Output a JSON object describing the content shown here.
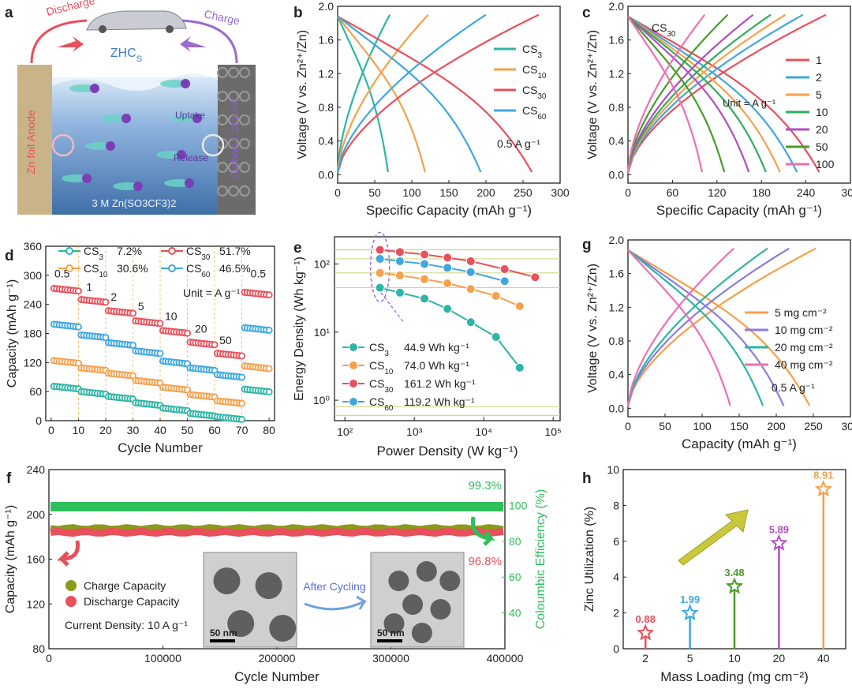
{
  "panels": {
    "a": {
      "letter": "a",
      "discharge_label": "Discharge",
      "charge_label": "Charge",
      "device_label": "ZHC",
      "device_sub": "S",
      "anode_label": "Zn foil Anode",
      "cathode_label": "Carbon Cathode",
      "uptake_label": "Uptake",
      "release_label": "Release",
      "electrolyte_label": "3 M Zn(SO3CF3)2",
      "colors": {
        "discharge": "#e8505b",
        "charge": "#9b6ad0",
        "anode": "#c9b48a",
        "cathode": "#6b6b6b",
        "water": "#5a8fc8"
      }
    },
    "b": {
      "letter": "b",
      "note": "0.5 A g⁻¹",
      "xlabel": "Specific Capacity (mAh g⁻¹)",
      "ylabel": "Voltage (V vs. Zn²⁺/Zn)"
    },
    "c": {
      "letter": "c",
      "tag": "CS30",
      "note": "Unit = A g⁻¹",
      "xlabel": "Specific Capacity (mAh g⁻¹)",
      "ylabel": "Voltage (V vs. Zn²⁺/Zn)"
    },
    "d": {
      "letter": "d",
      "note": "Unit = A g⁻¹",
      "xlabel": "Cycle Number",
      "ylabel": "Capacity (mAh g⁻¹)"
    },
    "e": {
      "letter": "e",
      "xlabel": "Power Density (W kg⁻¹)",
      "ylabel": "Energy Density (Wh kg⁻¹)"
    },
    "f": {
      "letter": "f",
      "xlabel": "Cycle Number",
      "ylabel": "Capacity (mAh g⁻¹)",
      "ylabel2": "Coloumbic Efficiency (%)",
      "current": "Current Density: 10 A g⁻¹",
      "after": "After Cycling",
      "scale1": "50 nm",
      "scale2": "50 nm"
    },
    "g": {
      "letter": "g",
      "note": "0.5 A g⁻¹",
      "xlabel": "Capacity (mAh g⁻¹)",
      "ylabel": "Voltage (V vs. Zn²⁺/Zn)"
    },
    "h": {
      "letter": "h",
      "xlabel": "Mass Loading (mg cm⁻²)",
      "ylabel": "Zinc Utilization (%)"
    }
  },
  "chart_data": [
    {
      "panel": "b",
      "type": "line",
      "xlim": [
        0,
        300
      ],
      "ylim": [
        -0.1,
        2.0
      ],
      "xticks": [
        "0",
        "50",
        "100",
        "150",
        "200",
        "250",
        "300"
      ],
      "yticks": [
        "0.0",
        "0.4",
        "0.8",
        "1.2",
        "1.6",
        "2.0"
      ],
      "series": [
        {
          "name": "CS3",
          "sub": "3",
          "color": "#2db5a5",
          "capacity": 68
        },
        {
          "name": "CS10",
          "sub": "10",
          "color": "#f5a04a",
          "capacity": 118
        },
        {
          "name": "CS30",
          "sub": "30",
          "color": "#e8505b",
          "capacity": 262
        },
        {
          "name": "CS60",
          "sub": "60",
          "color": "#3fa7de",
          "capacity": 193
        }
      ]
    },
    {
      "panel": "c",
      "type": "line",
      "xlim": [
        0,
        300
      ],
      "ylim": [
        -0.1,
        2.0
      ],
      "xticks": [
        "0",
        "60",
        "120",
        "180",
        "240",
        "300"
      ],
      "yticks": [
        "0.0",
        "0.4",
        "0.8",
        "1.2",
        "1.6",
        "2.0"
      ],
      "series": [
        {
          "name": "1",
          "color": "#e8505b",
          "capacity": 258
        },
        {
          "name": "2",
          "color": "#3fa7de",
          "capacity": 228
        },
        {
          "name": "5",
          "color": "#f5a04a",
          "capacity": 205
        },
        {
          "name": "10",
          "color": "#2fae5c",
          "capacity": 186
        },
        {
          "name": "20",
          "color": "#b04fc0",
          "capacity": 163
        },
        {
          "name": "50",
          "color": "#4a9a2a",
          "capacity": 130
        },
        {
          "name": "100",
          "color": "#ef6fb5",
          "capacity": 100
        }
      ]
    },
    {
      "panel": "d",
      "type": "scatter",
      "xlim": [
        -2,
        82
      ],
      "ylim": [
        0,
        360
      ],
      "xticks": [
        "0",
        "10",
        "20",
        "30",
        "40",
        "50",
        "60",
        "70",
        "80"
      ],
      "yticks": [
        "0",
        "60",
        "120",
        "180",
        "240",
        "300",
        "360"
      ],
      "rate_labels": [
        "0.5",
        "1",
        "2",
        "5",
        "10",
        "20",
        "50",
        "0.5"
      ],
      "series": [
        {
          "name": "CS3",
          "sub": "3",
          "retention": "7.2%",
          "color": "#2db5a5",
          "levels": [
            68,
            57,
            47,
            34,
            23,
            12,
            5,
            62
          ]
        },
        {
          "name": "CS10",
          "sub": "10",
          "retention": "30.6%",
          "color": "#f5a04a",
          "levels": [
            121,
            106,
            95,
            80,
            66,
            51,
            38,
            110
          ]
        },
        {
          "name": "CS30",
          "sub": "30",
          "retention": "51.7%",
          "color": "#e8505b",
          "levels": [
            270,
            247,
            224,
            203,
            183,
            159,
            136,
            262
          ]
        },
        {
          "name": "CS60",
          "sub": "60",
          "retention": "46.5%",
          "color": "#3fa7de",
          "levels": [
            196,
            174,
            158,
            141,
            120,
            106,
            92,
            189
          ]
        }
      ]
    },
    {
      "panel": "e",
      "type": "scatter",
      "xlim_log": [
        1.85,
        5.1
      ],
      "ylim_log": [
        -0.3,
        2.4
      ],
      "xticks": [
        "10²",
        "10³",
        "10⁴",
        "10⁵"
      ],
      "yticks": [
        "10⁰",
        "10¹",
        "10²"
      ],
      "series": [
        {
          "name": "CS3",
          "sub": "3",
          "value": "44.9",
          "unit": "Wh kg⁻¹",
          "color": "#2db5a5",
          "points": [
            [
              320,
              44.9
            ],
            [
              620,
              38
            ],
            [
              1400,
              31
            ],
            [
              3000,
              22
            ],
            [
              6500,
              14
            ],
            [
              15000,
              8.5
            ],
            [
              33000,
              3
            ]
          ]
        },
        {
          "name": "CS10",
          "sub": "10",
          "value": "74.0",
          "unit": "Wh kg⁻¹",
          "color": "#f5a04a",
          "points": [
            [
              320,
              74
            ],
            [
              620,
              68
            ],
            [
              1400,
              60
            ],
            [
              3000,
              52
            ],
            [
              6500,
              43
            ],
            [
              15000,
              34
            ],
            [
              33000,
              24
            ]
          ]
        },
        {
          "name": "CS30",
          "sub": "30",
          "value": "161.2",
          "unit": "Wh kg⁻¹",
          "color": "#e8505b",
          "points": [
            [
              320,
              161.2
            ],
            [
              620,
              150
            ],
            [
              1400,
              138
            ],
            [
              3000,
              124
            ],
            [
              6500,
              110
            ],
            [
              20000,
              84
            ],
            [
              55000,
              64
            ]
          ]
        },
        {
          "name": "CS60",
          "sub": "60",
          "value": "119.2",
          "unit": "Wh kg⁻¹",
          "color": "#3fa7de",
          "points": [
            [
              320,
              119.2
            ],
            [
              620,
              110
            ],
            [
              1400,
              100
            ],
            [
              3000,
              88
            ],
            [
              6500,
              76
            ],
            [
              20000,
              56
            ]
          ]
        }
      ]
    },
    {
      "panel": "g",
      "type": "line",
      "xlim": [
        0,
        300
      ],
      "ylim": [
        -0.1,
        2.0
      ],
      "xticks": [
        "0",
        "50",
        "100",
        "150",
        "200",
        "250",
        "300"
      ],
      "yticks": [
        "0.0",
        "0.4",
        "0.8",
        "1.2",
        "1.6",
        "2.0"
      ],
      "series": [
        {
          "name": "5  mg cm⁻²",
          "color": "#f5a04a",
          "capacity": 245
        },
        {
          "name": "10 mg cm⁻²",
          "color": "#8a7be0",
          "capacity": 210
        },
        {
          "name": "20 mg cm⁻²",
          "color": "#2db5a5",
          "capacity": 182
        },
        {
          "name": "40 mg cm⁻²",
          "color": "#ef6fb5",
          "capacity": 138
        }
      ]
    },
    {
      "panel": "f",
      "type": "scatter",
      "xlim": [
        0,
        400000
      ],
      "ylim": [
        80,
        240
      ],
      "ylim2": [
        20,
        120
      ],
      "xticks": [
        "0",
        "100000",
        "200000",
        "300000",
        "400000"
      ],
      "yticks": [
        "80",
        "120",
        "160",
        "200",
        "240"
      ],
      "yticks2": [
        "40",
        "60",
        "80",
        "100"
      ],
      "charge": {
        "name": "Charge Capacity",
        "color": "#8a9a1a",
        "level": 188
      },
      "discharge": {
        "name": "Discharge Capacity",
        "color": "#e8505b",
        "level": 184
      },
      "efficiency": {
        "color": "#2fbf5a",
        "level": 99.3
      },
      "annotations": [
        "99.3%",
        "96.8%"
      ]
    },
    {
      "panel": "h",
      "type": "bar",
      "categories": [
        "2",
        "5",
        "10",
        "20",
        "40"
      ],
      "values": [
        0.88,
        1.99,
        3.48,
        5.89,
        8.91
      ],
      "labels": [
        "0.88",
        "1.99",
        "3.48",
        "5.89",
        "8.91"
      ],
      "colors": [
        "#e8505b",
        "#3fa7de",
        "#4a9a2a",
        "#b04fc0",
        "#f5a04a"
      ],
      "ylim": [
        0,
        10
      ],
      "yticks": [
        "0",
        "2",
        "4",
        "6",
        "8",
        "10"
      ]
    }
  ]
}
